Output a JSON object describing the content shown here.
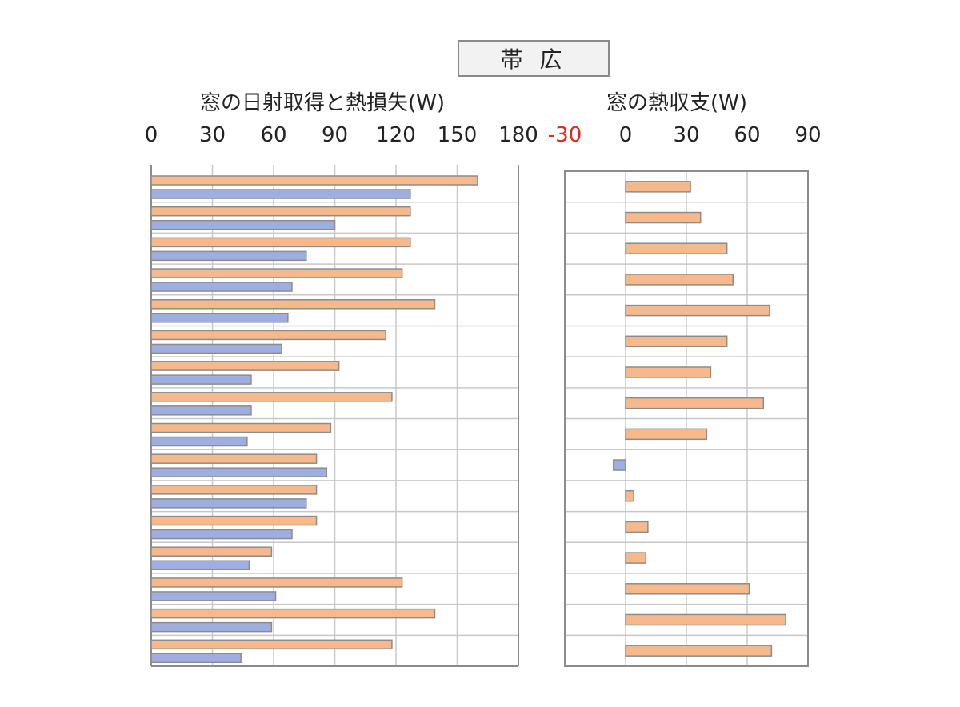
{
  "region_label": "帯 広",
  "chart_data": [
    {
      "type": "bar",
      "orientation": "horizontal",
      "title": "窓の日射取得と熱損失(W)",
      "xlim": [
        0,
        180
      ],
      "tick_values": [
        0,
        30,
        60,
        90,
        120,
        150,
        180
      ],
      "tick_labels": [
        "0",
        "30",
        "60",
        "90",
        "120",
        "150",
        "180"
      ],
      "grid": true,
      "categories_count": 16,
      "series": [
        {
          "color": "#f5b98c",
          "values": [
            160,
            127,
            127,
            123,
            139,
            115,
            92,
            118,
            88,
            81,
            81,
            81,
            59,
            123,
            139,
            118
          ]
        },
        {
          "color": "#9eaee0",
          "values": [
            127,
            90,
            76,
            69,
            67,
            64,
            49,
            49,
            47,
            86,
            76,
            69,
            48,
            61,
            59,
            44
          ]
        }
      ]
    },
    {
      "type": "bar",
      "orientation": "horizontal",
      "title": "窓の熱収支(W)",
      "xlim": [
        -30,
        90
      ],
      "tick_values": [
        -30,
        0,
        30,
        60,
        90
      ],
      "tick_labels": [
        "-30",
        "0",
        "30",
        "60",
        "90"
      ],
      "negative_tick_color": "#e3261e",
      "grid": true,
      "positive_color": "#f5b98c",
      "negative_color": "#9eaee0",
      "values": [
        32,
        37,
        50,
        53,
        71,
        50,
        42,
        68,
        40,
        -6,
        4,
        11,
        10,
        61,
        79,
        72
      ]
    }
  ]
}
